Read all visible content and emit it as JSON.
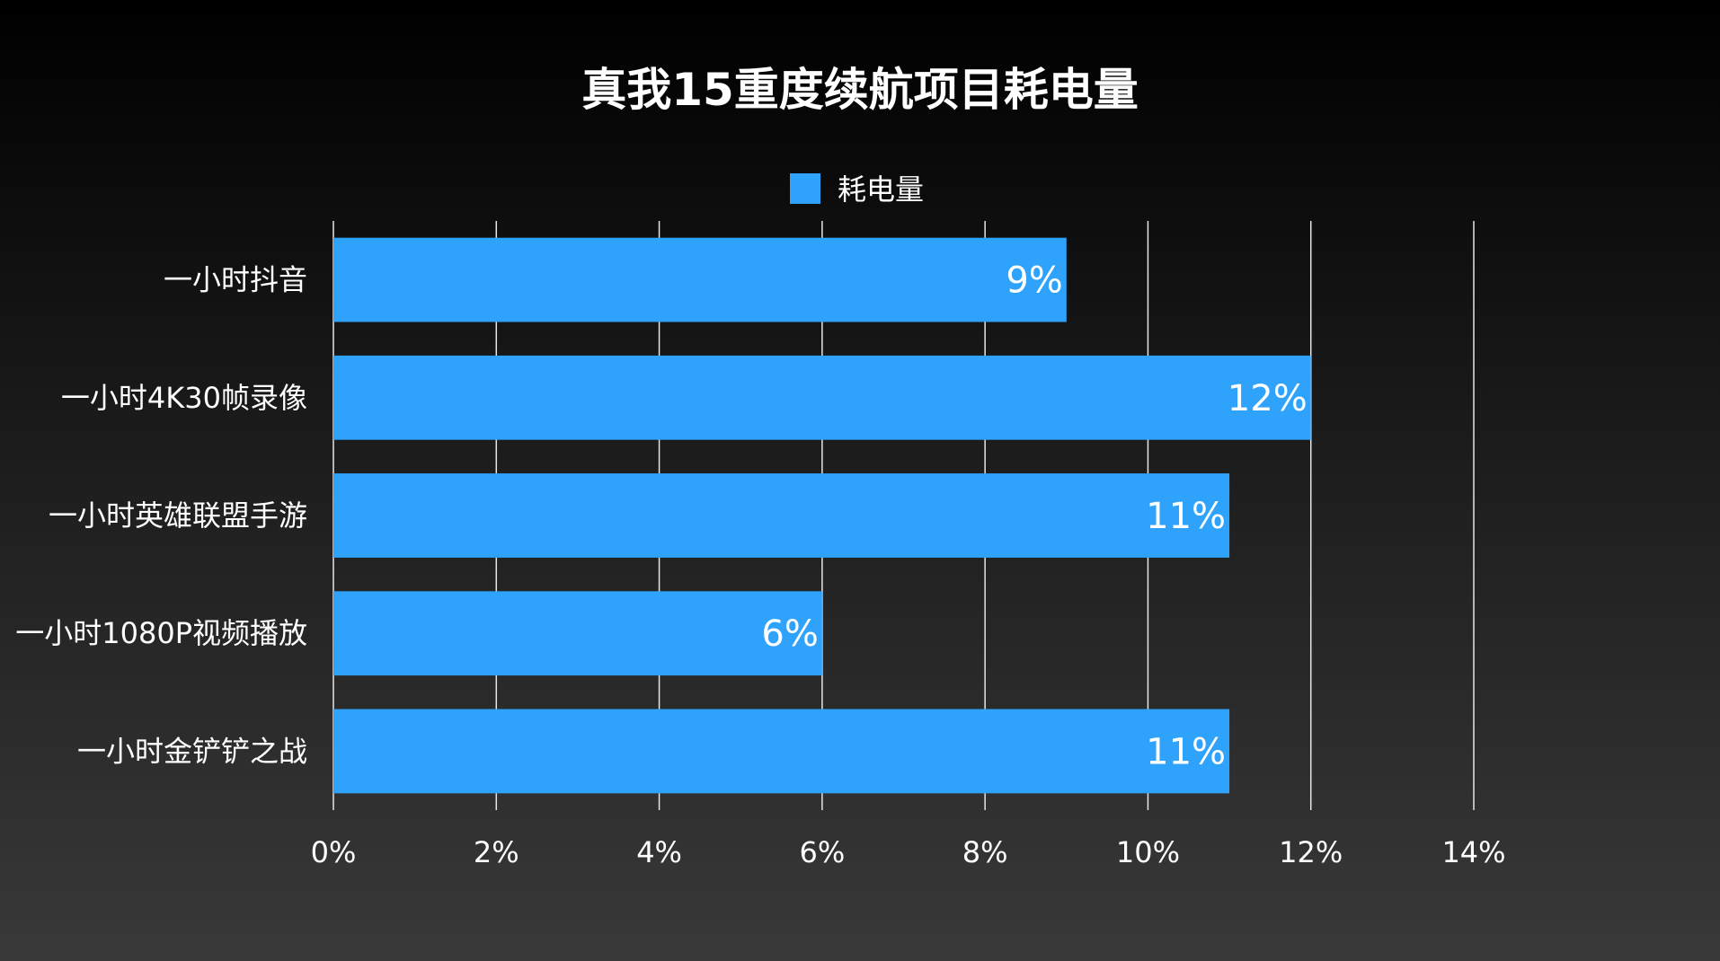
{
  "chart_data": {
    "type": "bar",
    "orientation": "horizontal",
    "title": "真我15重度续航项目耗电量",
    "xlabel": "",
    "ylabel": "",
    "categories": [
      "一小时抖音",
      "一小时4K30帧录像",
      "一小时英雄联盟手游",
      "一小时1080P视频播放",
      "一小时金铲铲之战"
    ],
    "series": [
      {
        "name": "耗电量",
        "values": [
          9,
          12,
          11,
          6,
          11
        ],
        "color": "#2fa2fb"
      }
    ],
    "data_labels": [
      "9%",
      "12%",
      "11%",
      "6%",
      "11%"
    ],
    "xlim": [
      0,
      14
    ],
    "x_ticks": [
      0,
      2,
      4,
      6,
      8,
      10,
      12,
      14
    ],
    "x_tick_labels": [
      "0%",
      "2%",
      "4%",
      "6%",
      "8%",
      "10%",
      "12%",
      "14%"
    ],
    "grid": true,
    "legend_position": "top",
    "colors": {
      "bar": "#2fa2fb",
      "text": "#ffffff",
      "grid": "#e6e6e6"
    }
  }
}
